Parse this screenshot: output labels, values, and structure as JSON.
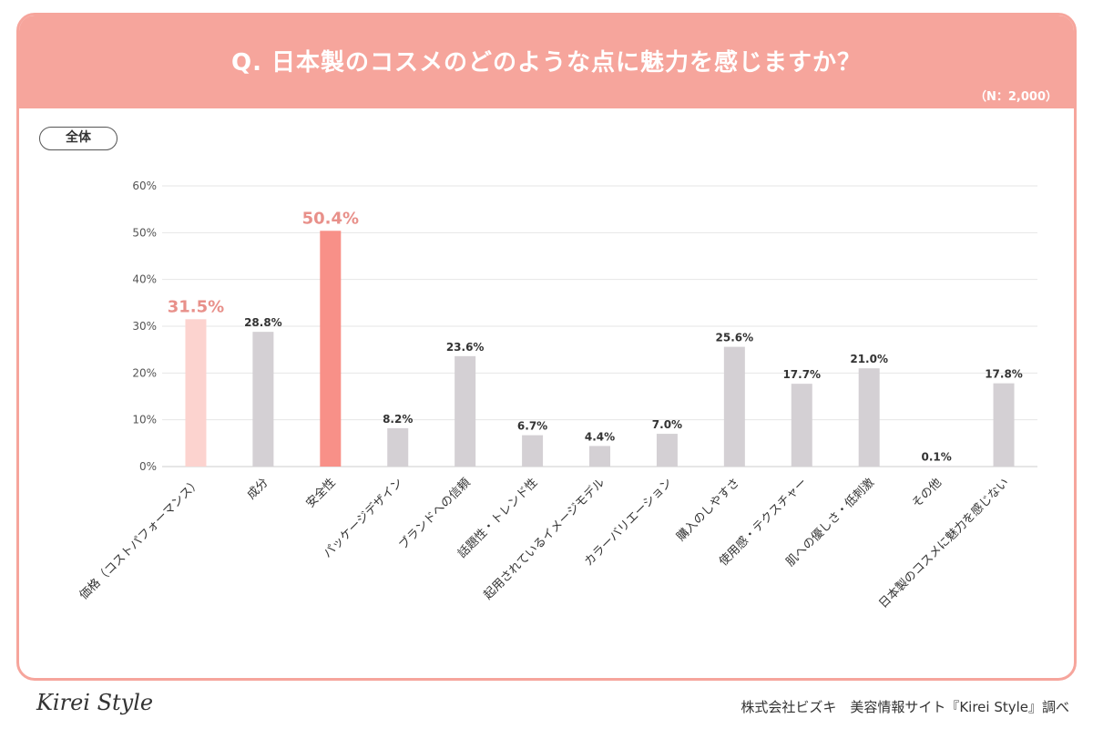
{
  "header": {
    "title": "Q. 日本製のコスメのどのような点に魅力を感じますか？",
    "sample": "（N：2,000）"
  },
  "segment_label": "全体",
  "footer": {
    "logo": "Kirei Style",
    "credit": "株式会社ビズキ　美容情報サイト『Kirei Style』調べ"
  },
  "colors": {
    "header": "#f6a59c",
    "bar_default": "#d4d0d4",
    "bar_top1": "#f89088",
    "bar_top2": "#fcd3cf",
    "highlight_label": "#e8908a",
    "grid": "#e6e6e6"
  },
  "chart_data": {
    "type": "bar",
    "categories": [
      "価格（コストパフォーマンス）",
      "成分",
      "安全性",
      "パッケージデザイン",
      "ブランドへの信頼",
      "話題性・トレンド性",
      "起用されているイメージモデル",
      "カラーバリエーション",
      "購入のしやすさ",
      "使用感・テクスチャー",
      "肌への優しさ・低刺激",
      "その他",
      "日本製のコスメに魅力を感じない"
    ],
    "values": [
      31.5,
      28.8,
      50.4,
      8.2,
      23.6,
      6.7,
      4.4,
      7.0,
      25.6,
      17.7,
      21.0,
      0.1,
      17.8
    ],
    "value_labels": [
      "31.5%",
      "28.8%",
      "50.4%",
      "8.2%",
      "23.6%",
      "6.7%",
      "4.4%",
      "7.0%",
      "25.6%",
      "17.7%",
      "21.0%",
      "0.1%",
      "17.8%"
    ],
    "ylim": [
      0,
      60
    ],
    "yticks": [
      "0%",
      "10%",
      "20%",
      "30%",
      "40%",
      "50%",
      "60%"
    ],
    "highlight": {
      "top1": 2,
      "top2": 0
    },
    "grid": true
  }
}
